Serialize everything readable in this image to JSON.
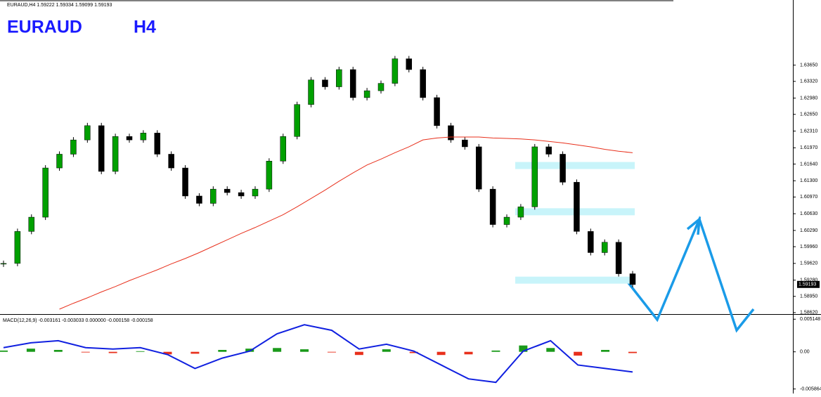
{
  "chart_data": {
    "type": "candlestick",
    "header": "EURAUD,H4 1.59222 1.59334 1.59099 1.59193",
    "title": "EURAUD",
    "subtitle": "H4",
    "last_price": 1.59193,
    "ylim": [
      1.5859,
      1.6486
    ],
    "yticks": [
      {
        "value": 1.6365,
        "label": "1.63650"
      },
      {
        "value": 1.6332,
        "label": "1.63320"
      },
      {
        "value": 1.6298,
        "label": "1.62980"
      },
      {
        "value": 1.6265,
        "label": "1.62650"
      },
      {
        "value": 1.6231,
        "label": "1.62310"
      },
      {
        "value": 1.6197,
        "label": "1.61970"
      },
      {
        "value": 1.6164,
        "label": "1.61640"
      },
      {
        "value": 1.613,
        "label": "1.61300"
      },
      {
        "value": 1.6097,
        "label": "1.60970"
      },
      {
        "value": 1.6063,
        "label": "1.60630"
      },
      {
        "value": 1.6029,
        "label": "1.60290"
      },
      {
        "value": 1.5996,
        "label": "1.59960"
      },
      {
        "value": 1.5962,
        "label": "1.59620"
      },
      {
        "value": 1.5928,
        "label": "1.59280"
      },
      {
        "value": 1.5895,
        "label": "1.58950"
      },
      {
        "value": 1.5862,
        "label": "1.58620"
      }
    ],
    "series": [
      {
        "name": "close",
        "up_color": "#00a000",
        "down_color": "#000000",
        "values": [
          1.5962,
          1.6027,
          1.6056,
          1.6156,
          1.6184,
          1.6213,
          1.6242,
          1.6149,
          1.622,
          1.6213,
          1.6227,
          1.6184,
          1.6156,
          1.6099,
          1.6084,
          1.6113,
          1.6106,
          1.6099,
          1.6113,
          1.617,
          1.622,
          1.6285,
          1.6335,
          1.6321,
          1.6356,
          1.6299,
          1.6313,
          1.6328,
          1.6378,
          1.6356,
          1.6299,
          1.6242,
          1.6213,
          1.6199,
          1.6113,
          1.6041,
          1.6056,
          1.6077,
          1.6199,
          1.6184,
          1.6127,
          1.6027,
          1.5984,
          1.6005,
          1.5941,
          1.5919
        ]
      },
      {
        "name": "ma",
        "color": "#e8301c",
        "values": [
          null,
          null,
          null,
          null,
          1.5869,
          1.5881,
          1.5892,
          1.5904,
          1.5915,
          1.5927,
          1.5938,
          1.5949,
          1.5961,
          1.5972,
          1.5984,
          1.5997,
          1.601,
          1.6023,
          1.6035,
          1.6048,
          1.6061,
          1.6077,
          1.6094,
          1.6111,
          1.6129,
          1.6146,
          1.6162,
          1.6174,
          1.6187,
          1.6199,
          1.6213,
          1.6217,
          1.6219,
          1.6219,
          1.6219,
          1.6217,
          1.6216,
          1.6215,
          1.6213,
          1.621,
          1.6207,
          1.6203,
          1.6199,
          1.6194,
          1.619,
          1.6187
        ]
      }
    ],
    "zones": {
      "color": "#c8f4fa",
      "values": [
        1.6161,
        1.6067,
        1.5928
      ]
    },
    "macd": {
      "label": "MACD(12,26,9) -0.003161 -0.003033 0.000000 -0.000158 -0.000158",
      "ylim": [
        -0.0058,
        0.0054
      ],
      "yticks": [
        0.005148,
        {
          "value": 0,
          "label": "0.00"
        },
        -0.005864
      ],
      "line": {
        "color": "#1020e0",
        "values": [
          0.00066,
          0.00142,
          0.00175,
          0.00066,
          0.00044,
          0.00066,
          -0.00044,
          -0.00263,
          -0.00099,
          0.00011,
          0.00285,
          0.00427,
          0.00339,
          0.00044,
          0.0012,
          0.00011,
          -0.00208,
          -0.00427,
          -0.00482,
          0.00011,
          0.00175,
          -0.00208,
          -0.00263,
          -0.00318
        ]
      },
      "histogram": {
        "up_color": "#1a9a1a",
        "down_color": "#e8301c",
        "values": [
          0.0002,
          0.0005,
          0.0003,
          -0.0001,
          -0.0002,
          0.0001,
          -0.0004,
          -0.0003,
          0.0003,
          0.0005,
          0.0006,
          0.0004,
          -0.0001,
          -0.0005,
          0.0004,
          -0.0002,
          -0.0005,
          -0.0004,
          0.0002,
          0.001,
          0.0006,
          -0.0006,
          0.0003,
          -0.0002
        ]
      }
    }
  }
}
